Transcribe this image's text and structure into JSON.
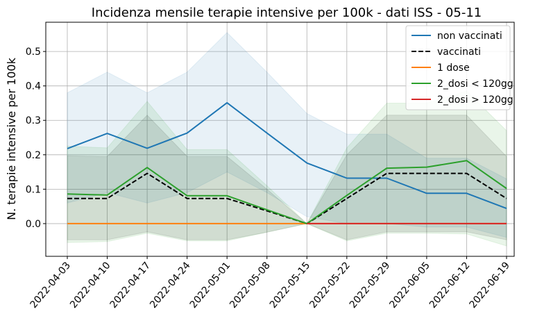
{
  "chart_data": {
    "type": "line",
    "title": "Incidenza mensile terapie intensive per 100k - dati ISS - 05-11",
    "xlabel": "",
    "ylabel": "N. terapie intensive per 100k",
    "x": [
      "2022-04-03",
      "2022-04-10",
      "2022-04-17",
      "2022-04-24",
      "2022-05-01",
      "2022-05-08",
      "2022-05-15",
      "2022-05-22",
      "2022-05-29",
      "2022-06-05",
      "2022-06-12",
      "2022-06-19"
    ],
    "ylim": [
      -0.095,
      0.585
    ],
    "yticks": [
      0.0,
      0.1,
      0.2,
      0.3,
      0.4,
      0.5
    ],
    "ytick_labels": [
      "0.0",
      "0.1",
      "0.2",
      "0.3",
      "0.4",
      "0.5"
    ],
    "grid": true,
    "legend_position": "top-right",
    "series": [
      {
        "name": "non vaccinati",
        "color": "#1f77b4",
        "dash": "solid",
        "values": [
          0.218,
          0.262,
          0.219,
          0.263,
          0.351,
          0.263,
          0.176,
          0.132,
          0.132,
          0.088,
          0.088,
          0.044
        ],
        "band_upper": [
          0.38,
          0.44,
          0.38,
          0.44,
          0.555,
          0.44,
          0.32,
          0.26,
          0.26,
          0.19,
          0.19,
          0.13
        ],
        "band_lower": [
          0.06,
          0.09,
          0.06,
          0.09,
          0.15,
          0.09,
          0.02,
          0.0,
          0.0,
          -0.01,
          -0.01,
          -0.04
        ]
      },
      {
        "name": "vaccinati",
        "color": "#000000",
        "dash": "dashed",
        "values": [
          0.073,
          0.073,
          0.146,
          0.073,
          0.073,
          0.037,
          0.0,
          0.073,
          0.146,
          0.146,
          0.146,
          0.073
        ],
        "band_upper": [
          0.197,
          0.195,
          0.315,
          0.195,
          0.195,
          0.1,
          0.0,
          0.2,
          0.315,
          0.315,
          0.315,
          0.195
        ],
        "band_lower": [
          -0.047,
          -0.047,
          -0.024,
          -0.047,
          -0.047,
          -0.025,
          0.0,
          -0.047,
          -0.024,
          -0.024,
          -0.024,
          -0.047
        ]
      },
      {
        "name": "1 dose",
        "color": "#ff7f0e",
        "dash": "solid",
        "values": [
          0.0,
          0.0,
          0.0,
          0.0,
          0.0,
          0.0,
          0.0,
          0.0,
          0.0,
          0.0,
          0.0,
          0.0
        ]
      },
      {
        "name": "2_dosi < 120gg",
        "color": "#2ca02c",
        "dash": "solid",
        "values": [
          0.086,
          0.083,
          0.163,
          0.081,
          0.081,
          0.04,
          0.0,
          0.082,
          0.161,
          0.164,
          0.183,
          0.102
        ],
        "band_upper": [
          0.225,
          0.22,
          0.355,
          0.215,
          0.215,
          0.11,
          0.0,
          0.22,
          0.35,
          0.35,
          0.385,
          0.27
        ],
        "band_lower": [
          -0.055,
          -0.052,
          -0.028,
          -0.05,
          -0.05,
          -0.025,
          0.0,
          -0.05,
          -0.028,
          -0.028,
          -0.03,
          -0.065
        ]
      },
      {
        "name": "2_dosi > 120gg",
        "color": "#d62728",
        "dash": "solid",
        "values": [
          null,
          null,
          null,
          null,
          null,
          null,
          0.0,
          0.0,
          0.0,
          0.0,
          0.0,
          0.0
        ]
      }
    ]
  }
}
